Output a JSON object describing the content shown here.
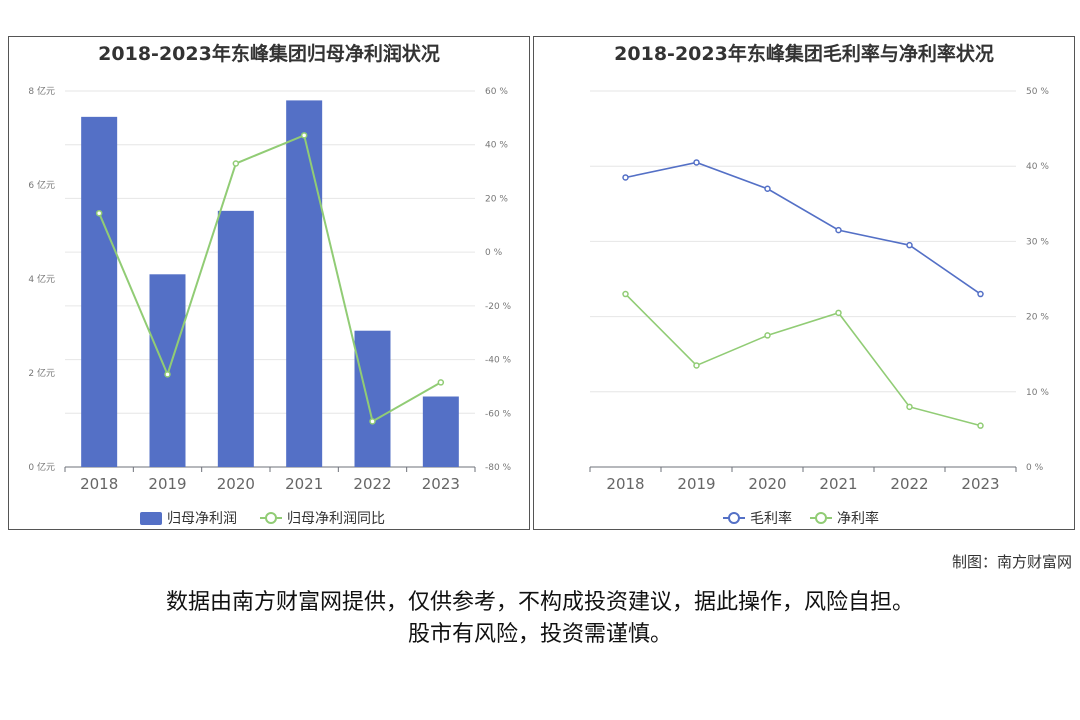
{
  "colors": {
    "bar": "#5470c6",
    "green": "#91cc75",
    "blue_line": "#5470c6",
    "grid": "#e6e6e6"
  },
  "credit": "制图：南方财富网",
  "disclaimer": {
    "line1": "数据由南方财富网提供，仅供参考，不构成投资建议，据此操作，风险自担。",
    "line2": "股市有风险，投资需谨慎。"
  },
  "chart_data": [
    {
      "type": "bar",
      "title": "2018-2023年东峰集团归母净利润状况",
      "categories": [
        "2018",
        "2019",
        "2020",
        "2021",
        "2022",
        "2023"
      ],
      "series": [
        {
          "name": "归母净利润",
          "type": "bar",
          "axis": "left",
          "values": [
            7.45,
            4.1,
            5.45,
            7.8,
            2.9,
            1.5
          ]
        },
        {
          "name": "归母净利润同比",
          "type": "line",
          "axis": "right",
          "values": [
            14.5,
            -45.5,
            33,
            43.5,
            -63,
            -48.5
          ]
        }
      ],
      "left_axis": {
        "ticks": [
          "0 亿元",
          "2 亿元",
          "4 亿元",
          "6 亿元",
          "8 亿元"
        ],
        "ylim": [
          0,
          8
        ]
      },
      "right_axis": {
        "ticks": [
          "-80 %",
          "-60 %",
          "-40 %",
          "-20 %",
          "0 %",
          "20 %",
          "40 %",
          "60 %"
        ],
        "ylim": [
          -80,
          60
        ]
      },
      "legend": "bottom-center",
      "grid": true
    },
    {
      "type": "line",
      "title": "2018-2023年东峰集团毛利率与净利率状况",
      "categories": [
        "2018",
        "2019",
        "2020",
        "2021",
        "2022",
        "2023"
      ],
      "series": [
        {
          "name": "毛利率",
          "values": [
            38.5,
            40.5,
            37,
            31.5,
            29.5,
            23
          ]
        },
        {
          "name": "净利率",
          "values": [
            23,
            13.5,
            17.5,
            20.5,
            8,
            5.5
          ]
        }
      ],
      "right_axis": {
        "ticks": [
          "0 %",
          "10 %",
          "20 %",
          "30 %",
          "40 %",
          "50 %"
        ],
        "ylim": [
          0,
          50
        ]
      },
      "legend": "bottom-center",
      "grid": true
    }
  ]
}
